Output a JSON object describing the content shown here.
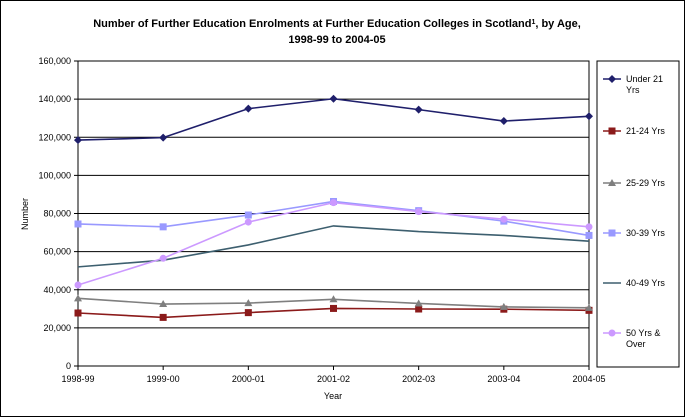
{
  "chart_data": {
    "type": "line",
    "title_line1": "Number of Further Education Enrolments at Further Education Colleges in Scotland",
    "title_sup": "1",
    "title_line1_end": ", by Age,",
    "title_line2": "1998-99 to 2004-05",
    "xlabel": "Year",
    "ylabel": "Number",
    "categories": [
      "1998-99",
      "1999-00",
      "2000-01",
      "2001-02",
      "2002-03",
      "2003-04",
      "2004-05"
    ],
    "ylim": [
      0,
      160000
    ],
    "yticks": [
      "0",
      "20,000",
      "40,000",
      "60,000",
      "80,000",
      "100,000",
      "120,000",
      "140,000",
      "160,000"
    ],
    "grid": "horizontal",
    "legend_position": "right",
    "series": [
      {
        "name": "Under 21 Yrs",
        "color": "#1f1f6b",
        "marker": "diamond",
        "values": [
          118500,
          119800,
          135000,
          140200,
          134500,
          128500,
          131000
        ]
      },
      {
        "name": "21-24 Yrs",
        "color": "#8b1a1a",
        "marker": "square",
        "values": [
          27800,
          25500,
          28000,
          30200,
          29900,
          29800,
          29200
        ]
      },
      {
        "name": "25-29 Yrs",
        "color": "#7f7f7f",
        "marker": "triangle",
        "values": [
          35500,
          32500,
          33000,
          35000,
          32800,
          31000,
          30500
        ]
      },
      {
        "name": "30-39 Yrs",
        "color": "#9999ff",
        "marker": "square",
        "values": [
          74500,
          73000,
          79200,
          86300,
          81500,
          76000,
          68500
        ]
      },
      {
        "name": "40-49 Yrs",
        "color": "#3d5f6f",
        "marker": "none",
        "values": [
          52000,
          55500,
          63500,
          73500,
          70500,
          68500,
          65500
        ]
      },
      {
        "name": "50 Yrs & Over",
        "color": "#cc99ff",
        "marker": "circle",
        "values": [
          42500,
          56500,
          75500,
          85700,
          81000,
          77000,
          73000
        ]
      }
    ]
  }
}
